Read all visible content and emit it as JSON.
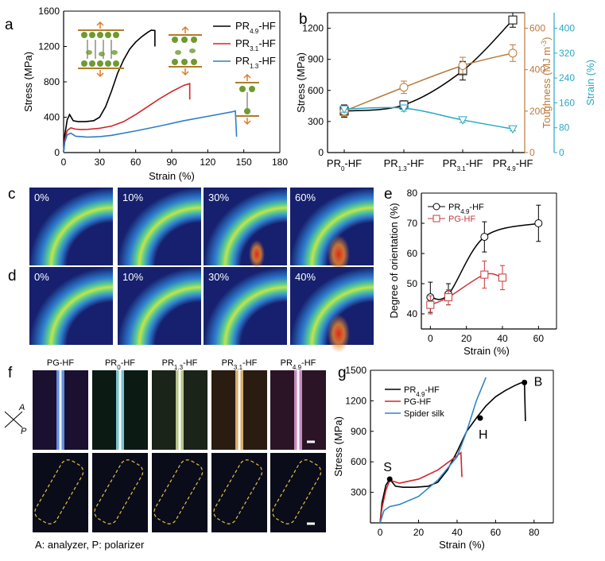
{
  "panel_labels": {
    "a": "a",
    "b": "b",
    "c": "c",
    "d": "d",
    "e": "e",
    "f": "f",
    "g": "g"
  },
  "chart_data": [
    {
      "id": "a",
      "type": "line",
      "xlabel": "Strain (%)",
      "ylabel": "Stress (MPa)",
      "xlim": [
        0,
        180
      ],
      "ylim": [
        0,
        1600
      ],
      "xticks": [
        0,
        30,
        60,
        90,
        120,
        150,
        180
      ],
      "yticks": [
        0,
        400,
        800,
        1200,
        1600
      ],
      "series": [
        {
          "name": "PR4.9-HF",
          "color": "#000000",
          "x": [
            0,
            1,
            3,
            5,
            8,
            12,
            18,
            25,
            30,
            35,
            40,
            45,
            50,
            55,
            60,
            65,
            70,
            73,
            76,
            76
          ],
          "y": [
            0,
            200,
            370,
            430,
            360,
            350,
            350,
            360,
            400,
            520,
            700,
            900,
            1050,
            1170,
            1250,
            1310,
            1360,
            1385,
            1380,
            1200
          ]
        },
        {
          "name": "PR3.1-HF",
          "color": "#d0262a",
          "x": [
            0,
            1,
            3,
            6,
            10,
            15,
            20,
            30,
            40,
            50,
            60,
            70,
            80,
            90,
            100,
            105,
            105
          ],
          "y": [
            0,
            150,
            250,
            280,
            265,
            260,
            262,
            275,
            300,
            350,
            430,
            520,
            610,
            690,
            760,
            780,
            600
          ]
        },
        {
          "name": "PR1.3-HF",
          "color": "#2f7fc1",
          "x": [
            0,
            1,
            3,
            6,
            10,
            20,
            30,
            40,
            60,
            80,
            100,
            120,
            140,
            143,
            144
          ],
          "y": [
            0,
            120,
            200,
            220,
            185,
            175,
            180,
            195,
            245,
            300,
            360,
            410,
            460,
            470,
            180
          ]
        }
      ],
      "legend": [
        {
          "main": "PR",
          "sub": "4.9",
          "suf": "-HF"
        },
        {
          "main": "PR",
          "sub": "3.1",
          "suf": "-HF"
        },
        {
          "main": "PR",
          "sub": "1.3",
          "suf": "-HF"
        }
      ],
      "legend_position": "top-right"
    },
    {
      "id": "b",
      "type": "line",
      "categories": [
        "PR0-HF",
        "PR1.3-HF",
        "PR3.1-HF",
        "PR4.9-HF"
      ],
      "category_labels": [
        {
          "main": "PR",
          "sub": "0",
          "suf": "-HF"
        },
        {
          "main": "PR",
          "sub": "1.3",
          "suf": "-HF"
        },
        {
          "main": "PR",
          "sub": "3.1",
          "suf": "-HF"
        },
        {
          "main": "PR",
          "sub": "4.9",
          "suf": "-HF"
        }
      ],
      "ylabel_left": "Stress (MPa)",
      "ylim_left": [
        0,
        1350
      ],
      "yticks_left": [
        0,
        300,
        600,
        900,
        1200
      ],
      "ylabel_mid": "Toughness (MJ m",
      "ylabel_mid_sup": "-3",
      "ylabel_mid_end": ")",
      "ylim_mid": [
        0,
        675
      ],
      "yticks_mid": [
        0,
        200,
        400,
        600
      ],
      "ylabel_right": "Strain (%)",
      "ylim_right": [
        0,
        450
      ],
      "yticks_right": [
        0,
        80,
        160,
        240,
        320,
        400
      ],
      "series": [
        {
          "name": "Stress",
          "axis": "left",
          "color": "#000000",
          "marker": "square",
          "values": [
            400,
            460,
            790,
            1280
          ],
          "errors": [
            60,
            40,
            90,
            70
          ]
        },
        {
          "name": "Toughness",
          "axis": "mid",
          "color": "#b9783c",
          "marker": "circle",
          "values": [
            200,
            315,
            420,
            480
          ],
          "errors": [
            25,
            30,
            40,
            40
          ]
        },
        {
          "name": "Strain",
          "axis": "right",
          "color": "#2aa7c4",
          "marker": "triangle",
          "values": [
            140,
            143,
            105,
            76
          ],
          "errors": [
            10,
            10,
            8,
            6
          ]
        }
      ]
    },
    {
      "id": "e",
      "type": "line",
      "xlabel": "Strain (%)",
      "ylabel": "Degree of orientation (%)",
      "xlim": [
        -5,
        70
      ],
      "ylim": [
        35,
        80
      ],
      "xticks": [
        0,
        20,
        40,
        60
      ],
      "yticks": [
        40,
        50,
        60,
        70,
        80
      ],
      "series": [
        {
          "name": "PR4.9-HF",
          "color": "#000000",
          "x": [
            0,
            10,
            30,
            60
          ],
          "y": [
            45.5,
            46.5,
            65.5,
            70
          ],
          "errors": [
            5,
            3.5,
            5,
            6
          ]
        },
        {
          "name": "PG-HF",
          "color": "#c8383a",
          "x": [
            0,
            10,
            30,
            40
          ],
          "y": [
            43,
            45.5,
            53,
            52
          ],
          "errors": [
            3,
            2.5,
            4.5,
            4
          ]
        }
      ],
      "legend": [
        {
          "main": "PR",
          "sub": "4.9",
          "suf": "-HF"
        },
        {
          "main": "PG-HF",
          "sub": "",
          "suf": ""
        }
      ]
    },
    {
      "id": "g",
      "type": "line",
      "xlabel": "Strain (%)",
      "ylabel": "Stress (MPa)",
      "xlim": [
        -5,
        90
      ],
      "ylim": [
        0,
        1500
      ],
      "xticks": [
        0,
        20,
        40,
        60,
        80
      ],
      "yticks": [
        300,
        600,
        900,
        1200,
        1500
      ],
      "series": [
        {
          "name": "PR4.9-HF",
          "color": "#000000",
          "x": [
            0,
            1,
            3,
            5,
            8,
            12,
            18,
            25,
            30,
            35,
            40,
            45,
            50,
            55,
            60,
            65,
            70,
            73,
            75,
            75.5
          ],
          "y": [
            0,
            200,
            370,
            430,
            360,
            350,
            350,
            360,
            400,
            520,
            700,
            900,
            1030,
            1150,
            1240,
            1300,
            1350,
            1375,
            1380,
            1000
          ]
        },
        {
          "name": "PG-HF",
          "color": "#d0262a",
          "x": [
            0,
            1,
            3,
            5,
            10,
            20,
            30,
            40,
            42,
            42.5
          ],
          "y": [
            0,
            150,
            320,
            420,
            390,
            430,
            520,
            660,
            690,
            450
          ]
        },
        {
          "name": "Spider silk",
          "color": "#2f86c8",
          "x": [
            0,
            2,
            5,
            10,
            20,
            30,
            40,
            45,
            50,
            55
          ],
          "y": [
            0,
            120,
            160,
            180,
            260,
            420,
            650,
            900,
            1200,
            1430
          ]
        }
      ],
      "annotations": [
        {
          "text": "S",
          "x": 5,
          "y": 430
        },
        {
          "text": "H",
          "x": 52,
          "y": 1030
        },
        {
          "text": "B",
          "x": 75,
          "y": 1380
        }
      ],
      "legend": [
        {
          "main": "PR",
          "sub": "4.9",
          "suf": "-HF"
        },
        {
          "main": "PG-HF",
          "sub": "",
          "suf": ""
        },
        {
          "main": "Spider silk",
          "sub": "",
          "suf": ""
        }
      ]
    }
  ],
  "waxs_c": {
    "labels": [
      "0%",
      "10%",
      "30%",
      "60%"
    ]
  },
  "waxs_d": {
    "labels": [
      "0%",
      "10%",
      "30%",
      "40%"
    ]
  },
  "panel_f": {
    "headers": [
      {
        "main": "PG-HF",
        "sub": "",
        "suf": ""
      },
      {
        "main": "PR",
        "sub": "0",
        "suf": "-HF"
      },
      {
        "main": "PR",
        "sub": "1.3",
        "suf": "-HF"
      },
      {
        "main": "PR",
        "sub": "3.1",
        "suf": "-HF"
      },
      {
        "main": "PR",
        "sub": "4.9",
        "suf": "-HF"
      }
    ],
    "axis_a": "A",
    "axis_p": "P",
    "caption": "A: analyzer, P: polarizer"
  }
}
